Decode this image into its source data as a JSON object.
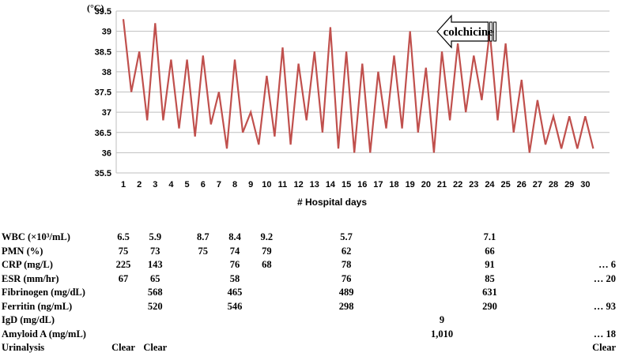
{
  "chart_data": {
    "type": "line",
    "unit_label": "(°C)",
    "xlabel": "# Hospital  days",
    "ylabel": "",
    "ylim": [
      35.5,
      39.5
    ],
    "yticks": [
      "35.5",
      "36",
      "36.5",
      "37",
      "37.5",
      "38",
      "38.5",
      "39",
      "39.5"
    ],
    "xticks": [
      "1",
      "2",
      "3",
      "4",
      "5",
      "6",
      "7",
      "8",
      "9",
      "10",
      "11",
      "12",
      "13",
      "14",
      "15",
      "16",
      "17",
      "18",
      "19",
      "20",
      "21",
      "22",
      "23",
      "24",
      "25",
      "26",
      "27",
      "28",
      "29",
      "30"
    ],
    "grid": true,
    "line_color": "#C0504D",
    "series": [
      {
        "x": [
          1,
          1.5,
          2,
          2.5,
          3,
          3.5,
          4,
          4.5,
          5,
          5.5,
          6,
          6.5,
          7,
          7.5,
          8,
          8.5,
          9,
          9.5,
          10,
          10.5,
          11,
          11.5,
          12,
          12.5,
          13,
          13.5,
          14,
          14.5,
          15,
          15.5,
          16,
          16.5,
          17,
          17.5,
          18,
          18.5,
          19,
          19.5,
          20,
          20.5,
          21,
          21.5,
          22,
          22.5,
          23,
          23.5,
          24,
          24.5,
          25,
          25.5,
          26,
          26.5,
          27,
          27.5,
          28,
          28.5,
          29,
          29.5,
          30,
          30.5
        ],
        "values": [
          39.3,
          37.5,
          38.5,
          36.8,
          39.2,
          36.8,
          38.3,
          36.6,
          38.3,
          36.4,
          38.4,
          36.7,
          37.5,
          36.1,
          38.3,
          36.5,
          37.0,
          36.2,
          37.9,
          36.4,
          38.6,
          36.2,
          38.2,
          36.8,
          38.5,
          36.5,
          39.1,
          36.1,
          38.5,
          36.0,
          38.2,
          36.0,
          38.0,
          36.6,
          38.4,
          36.6,
          39.0,
          36.5,
          38.1,
          36.0,
          38.5,
          36.8,
          38.7,
          37.0,
          38.4,
          37.3,
          39.0,
          36.8,
          38.7,
          36.5,
          37.8,
          36.0,
          37.3,
          36.2,
          36.9,
          36.1,
          36.9,
          36.1,
          36.9,
          36.1
        ]
      }
    ],
    "annotation": {
      "label": "colchicine",
      "start_day": 24.5,
      "end_day": 21,
      "direction": "left"
    }
  },
  "lab_table": {
    "rows": [
      {
        "label": "WBC (×10³/mL)",
        "cells": [
          {
            "day": 1,
            "text": "6.5"
          },
          {
            "day": 3,
            "text": "5.9"
          },
          {
            "day": 6,
            "text": "8.7"
          },
          {
            "day": 8,
            "text": "8.4"
          },
          {
            "day": 10,
            "text": "9.2"
          },
          {
            "day": 15,
            "text": "5.7"
          },
          {
            "day": 24,
            "text": "7.1"
          }
        ]
      },
      {
        "label": "PMN (%)",
        "cells": [
          {
            "day": 1,
            "text": "75"
          },
          {
            "day": 3,
            "text": "73"
          },
          {
            "day": 6,
            "text": "75"
          },
          {
            "day": 8,
            "text": "74"
          },
          {
            "day": 10,
            "text": "79"
          },
          {
            "day": 15,
            "text": "62"
          },
          {
            "day": 24,
            "text": "66"
          }
        ]
      },
      {
        "label": "CRP (mg/L)",
        "cells": [
          {
            "day": 1,
            "text": "225"
          },
          {
            "day": 3,
            "text": "143"
          },
          {
            "day": 8,
            "text": "76"
          },
          {
            "day": 10,
            "text": "68"
          },
          {
            "day": 15,
            "text": "78"
          },
          {
            "day": 24,
            "text": "91"
          }
        ],
        "trailing": "… 6"
      },
      {
        "label": "ESR (mm/hr)",
        "cells": [
          {
            "day": 1,
            "text": "67"
          },
          {
            "day": 3,
            "text": "65"
          },
          {
            "day": 8,
            "text": "58"
          },
          {
            "day": 15,
            "text": "76"
          },
          {
            "day": 24,
            "text": "85"
          }
        ],
        "trailing": "… 20"
      },
      {
        "label": "Fibrinogen (mg/dL)",
        "cells": [
          {
            "day": 3,
            "text": "568"
          },
          {
            "day": 8,
            "text": "465"
          },
          {
            "day": 15,
            "text": "489"
          },
          {
            "day": 24,
            "text": "631"
          }
        ]
      },
      {
        "label": "Ferritin (ng/mL)",
        "cells": [
          {
            "day": 3,
            "text": "520"
          },
          {
            "day": 8,
            "text": "546"
          },
          {
            "day": 15,
            "text": "298"
          },
          {
            "day": 24,
            "text": "290"
          }
        ],
        "trailing": "… 93"
      },
      {
        "label": "IgD (mg/dL)",
        "cells": [
          {
            "day": 21,
            "text": "9"
          }
        ]
      },
      {
        "label": "Amyloid A (mg/mL)",
        "cells": [
          {
            "day": 21,
            "text": "1,010"
          }
        ],
        "trailing": "… 18"
      },
      {
        "label": "Urinalysis",
        "cells": [
          {
            "day": 1,
            "text": "Clear"
          },
          {
            "day": 3,
            "text": "Clear"
          }
        ],
        "trailing": "Clear"
      }
    ]
  }
}
